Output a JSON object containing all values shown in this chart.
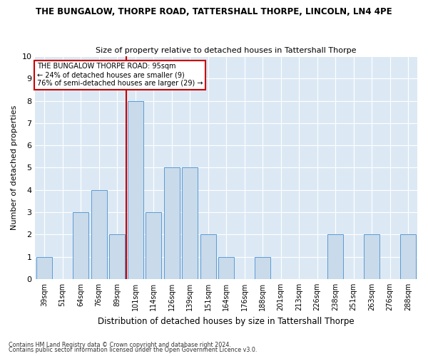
{
  "title": "THE BUNGALOW, THORPE ROAD, TATTERSHALL THORPE, LINCOLN, LN4 4PE",
  "subtitle": "Size of property relative to detached houses in Tattershall Thorpe",
  "xlabel": "Distribution of detached houses by size in Tattershall Thorpe",
  "ylabel": "Number of detached properties",
  "categories": [
    "39sqm",
    "51sqm",
    "64sqm",
    "76sqm",
    "89sqm",
    "101sqm",
    "114sqm",
    "126sqm",
    "139sqm",
    "151sqm",
    "164sqm",
    "176sqm",
    "188sqm",
    "201sqm",
    "213sqm",
    "226sqm",
    "238sqm",
    "251sqm",
    "263sqm",
    "276sqm",
    "288sqm"
  ],
  "values": [
    1,
    0,
    3,
    4,
    2,
    8,
    3,
    5,
    5,
    2,
    1,
    0,
    1,
    0,
    0,
    0,
    2,
    0,
    2,
    0,
    2
  ],
  "bar_color": "#c9daea",
  "bar_edgecolor": "#5b9bd5",
  "annotation_line1": "THE BUNGALOW THORPE ROAD: 95sqm",
  "annotation_line2": "← 24% of detached houses are smaller (9)",
  "annotation_line3": "76% of semi-detached houses are larger (29) →",
  "annotation_box_color": "#ffffff",
  "annotation_box_edgecolor": "#cc0000",
  "vline_color": "#cc0000",
  "vline_x_index": 4.5,
  "ylim": [
    0,
    10
  ],
  "yticks": [
    0,
    1,
    2,
    3,
    4,
    5,
    6,
    7,
    8,
    9,
    10
  ],
  "plot_bg_color": "#dce9f5",
  "figure_bg_color": "#ffffff",
  "grid_color": "#ffffff",
  "footer1": "Contains HM Land Registry data © Crown copyright and database right 2024.",
  "footer2": "Contains public sector information licensed under the Open Government Licence v3.0."
}
